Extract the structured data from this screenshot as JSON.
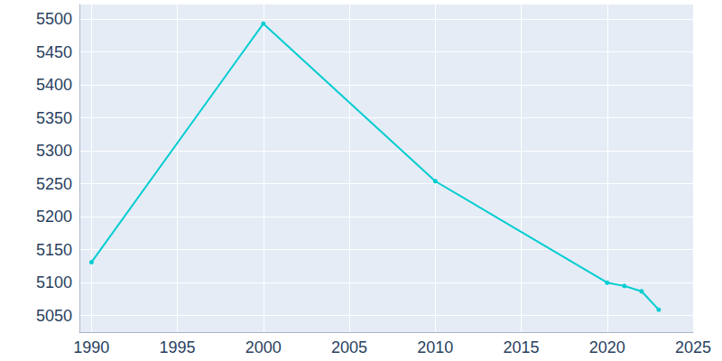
{
  "chart_data": {
    "type": "line",
    "x": [
      1990,
      2000,
      2010,
      2020,
      2021,
      2022,
      2023
    ],
    "values": [
      5131,
      5493,
      5254,
      5100,
      5095,
      5087,
      5059
    ],
    "color": "#00cdd0",
    "marker": "circle",
    "xlim": [
      1989.3,
      2025
    ],
    "xticks": [
      1990,
      1995,
      2000,
      2005,
      2010,
      2015,
      2020,
      2025
    ],
    "ylim": [
      5025,
      5522
    ],
    "yticks": [
      5050,
      5100,
      5150,
      5200,
      5250,
      5300,
      5350,
      5400,
      5450,
      5500
    ],
    "grid": true
  }
}
